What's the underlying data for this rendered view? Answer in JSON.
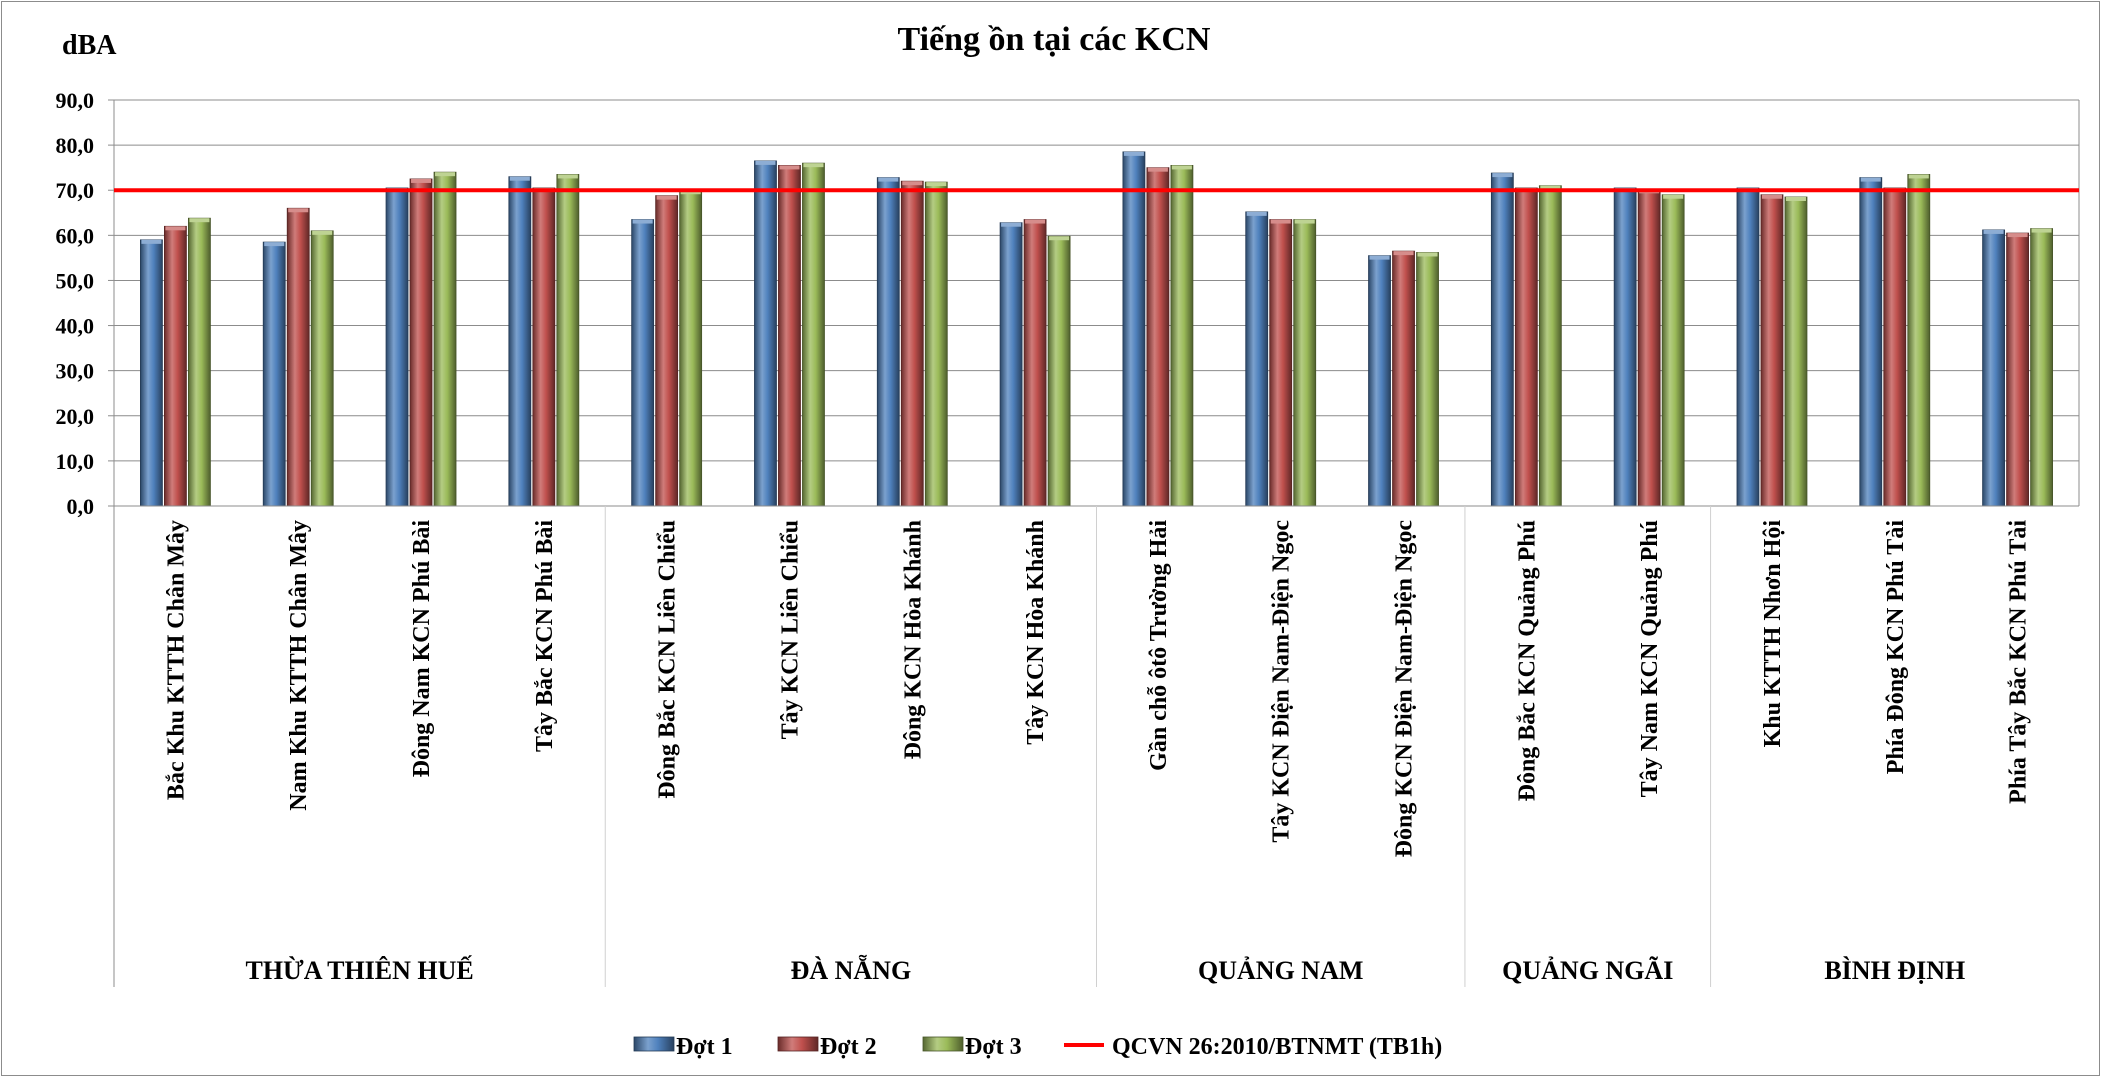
{
  "chart_data": {
    "type": "bar",
    "title": "Tiếng ồn tại các KCN",
    "ylabel": "dBA",
    "xlabel": "",
    "ylim": [
      0,
      90
    ],
    "yticks": [
      "0,0",
      "10,0",
      "20,0",
      "30,0",
      "40,0",
      "50,0",
      "60,0",
      "70,0",
      "80,0",
      "90,0"
    ],
    "grid": true,
    "legend_position": "bottom",
    "categories": [
      "Bắc Khu KTTH Chân Mây",
      "Nam Khu KTTH Chân Mây",
      "Đông Nam KCN Phú Bài",
      "Tây Bắc KCN Phú Bài",
      "Đông Bắc KCN Liên Chiểu",
      "Tây KCN Liên Chiểu",
      "Đông KCN Hòa Khánh",
      "Tây KCN Hòa Khánh",
      "Gần chỗ ôtô Trường Hải",
      "Tây KCN Điện Nam-Điện Ngọc",
      "Đông KCN Điện Nam-Điện Ngọc",
      "Đông Bắc KCN Quảng Phú",
      "Tây Nam KCN Quảng Phú",
      "Khu KTTH Nhơn Hội",
      "Phía Đông KCN Phú Tài",
      "Phía Tây Bắc KCN Phú Tài"
    ],
    "groups": [
      {
        "label": "THỪA THIÊN HUẾ",
        "count": 4
      },
      {
        "label": "ĐÀ NẴNG",
        "count": 4
      },
      {
        "label": "QUẢNG NAM",
        "count": 3
      },
      {
        "label": "QUẢNG NGÃI",
        "count": 2
      },
      {
        "label": "BÌNH ĐỊNH",
        "count": 3
      }
    ],
    "series": [
      {
        "name": "Đợt 1",
        "color": "#4F81BD",
        "values": [
          59.0,
          58.5,
          70.5,
          73.0,
          63.5,
          76.5,
          72.8,
          62.8,
          78.5,
          65.2,
          55.5,
          73.8,
          70.5,
          70.5,
          72.8,
          61.2
        ]
      },
      {
        "name": "Đợt 2",
        "color": "#C0504D",
        "values": [
          62.0,
          66.0,
          72.5,
          70.5,
          68.8,
          75.5,
          72.0,
          63.5,
          75.0,
          63.5,
          56.5,
          70.5,
          70.2,
          69.0,
          70.5,
          60.5
        ]
      },
      {
        "name": "Đợt 3",
        "color": "#9BBB59",
        "values": [
          63.8,
          61.0,
          74.0,
          73.5,
          70.0,
          76.0,
          71.8,
          59.8,
          75.5,
          63.5,
          56.2,
          71.0,
          69.0,
          68.5,
          73.5,
          61.5
        ]
      }
    ],
    "reference_line": {
      "name": "QCVN 26:2010/BTNMT (TB1h)",
      "value": 70,
      "color": "#FF0000"
    }
  }
}
